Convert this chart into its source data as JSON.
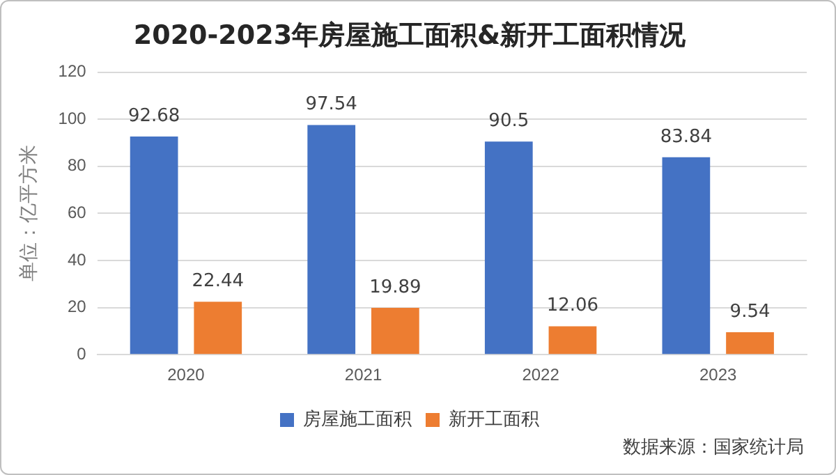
{
  "chart_data": {
    "type": "bar",
    "title": "2020-2023年房屋施工面积&新开工面积情况",
    "ylabel": "单位：亿平方米",
    "categories": [
      "2020",
      "2021",
      "2022",
      "2023"
    ],
    "series": [
      {
        "name": "房屋施工面积",
        "color": "#4472c4",
        "values": [
          92.68,
          97.54,
          90.5,
          83.84
        ]
      },
      {
        "name": "新开工面积",
        "color": "#ed7d31",
        "values": [
          22.44,
          19.89,
          12.06,
          9.54
        ]
      }
    ],
    "ylim": [
      0,
      120
    ],
    "yticks": [
      0,
      20,
      40,
      60,
      80,
      100,
      120
    ],
    "grid": "y",
    "legend": "bottom",
    "data_labels": true,
    "annotations": [
      "数据来源：国家统计局"
    ]
  }
}
